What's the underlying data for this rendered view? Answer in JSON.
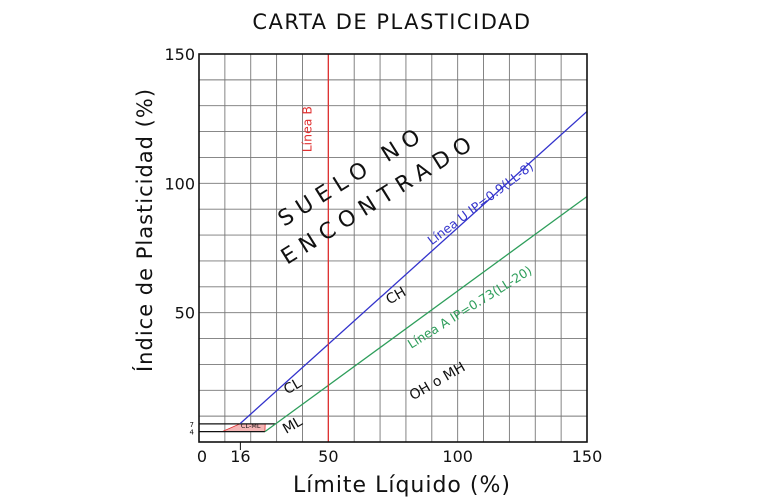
{
  "chart_data": {
    "type": "line",
    "title": "CARTA DE PLASTICIDAD",
    "xlabel": "Límite Líquido (%)",
    "ylabel": "Índice de Plasticidad (%)",
    "xlim": [
      0,
      150
    ],
    "ylim": [
      0,
      150
    ],
    "grid": true,
    "grid_step": 10,
    "x_ticks": [
      {
        "value": 0,
        "label": "0"
      },
      {
        "value": 16,
        "label": "16"
      },
      {
        "value": 50,
        "label": "50"
      },
      {
        "value": 100,
        "label": "100"
      },
      {
        "value": 150,
        "label": "150"
      }
    ],
    "y_ticks": [
      {
        "value": 4,
        "label": "4"
      },
      {
        "value": 7,
        "label": "7"
      },
      {
        "value": 50,
        "label": "50"
      },
      {
        "value": 100,
        "label": "100"
      },
      {
        "value": 150,
        "label": "150"
      }
    ],
    "series": [
      {
        "name": "Línea U IP=0.9(LL-8)",
        "color": "#3333cc",
        "x": [
          16,
          150
        ],
        "y": [
          7.2,
          127.8
        ]
      },
      {
        "name": "Línea A IP=0.73(LL-20)",
        "color": "#2e9e5b",
        "x": [
          25.5,
          150
        ],
        "y": [
          4,
          94.9
        ]
      },
      {
        "name": "Línea B",
        "color": "#e03131",
        "x": [
          50,
          50
        ],
        "y": [
          0,
          150
        ]
      }
    ],
    "zone_labels": [
      {
        "text": "CH",
        "x": 77,
        "y": 55
      },
      {
        "text": "CL",
        "x": 37,
        "y": 20
      },
      {
        "text": "ML",
        "x": 37,
        "y": 5
      },
      {
        "text": "OH o MH",
        "x": 93,
        "y": 22
      },
      {
        "text": "CL-ML",
        "x": 20,
        "y": 5.5
      }
    ],
    "annotation": {
      "line1": "SUELO NO",
      "line2": "ENCONTRADO"
    }
  }
}
